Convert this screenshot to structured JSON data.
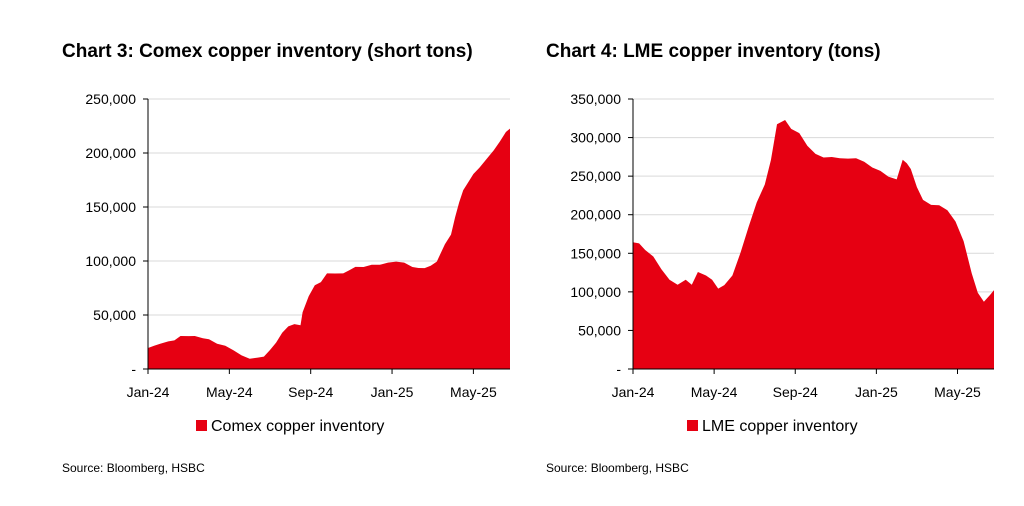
{
  "colors": {
    "series": "#e60012",
    "grid": "#d9d9d9",
    "axis": "#000000"
  },
  "chart_data": [
    {
      "type": "area",
      "title": "Chart 3: Comex copper inventory (short tons)",
      "source": "Source: Bloomberg, HSBC",
      "xlabel": "",
      "ylabel": "",
      "ylim": [
        0,
        250000
      ],
      "ytick_values": [
        0,
        50000,
        100000,
        150000,
        200000,
        250000
      ],
      "ytick_labels": [
        "-",
        "50,000",
        "100,000",
        "150,000",
        "200,000",
        "250,000"
      ],
      "xlim": [
        0,
        17.8
      ],
      "xtick_positions": [
        0,
        4,
        8,
        12,
        16
      ],
      "xtick_labels": [
        "Jan-24",
        "May-24",
        "Sep-24",
        "Jan-25",
        "May-25"
      ],
      "legend": [
        "Comex copper inventory"
      ],
      "legend_position": "bottom",
      "grid": true,
      "series": [
        {
          "name": "Comex copper inventory",
          "x": [
            0,
            0.3,
            0.6,
            1.0,
            1.3,
            1.6,
            2.0,
            2.3,
            2.7,
            3.0,
            3.4,
            3.8,
            4.2,
            4.6,
            5.0,
            5.4,
            5.7,
            6.0,
            6.3,
            6.6,
            6.9,
            7.2,
            7.5,
            7.6,
            7.9,
            8.2,
            8.5,
            8.8,
            9.2,
            9.6,
            9.9,
            10.2,
            10.6,
            11.0,
            11.4,
            11.8,
            12.2,
            12.6,
            13.0,
            13.3,
            13.6,
            13.9,
            14.2,
            14.6,
            14.9,
            15.1,
            15.3,
            15.5,
            15.7,
            16.0,
            16.3,
            16.7,
            17.0,
            17.3,
            17.6,
            17.8
          ],
          "values": [
            20000,
            21000,
            24000,
            25000,
            27000,
            30000,
            31000,
            30000,
            29000,
            27000,
            24000,
            21000,
            18000,
            12000,
            10000,
            10000,
            12000,
            17000,
            25000,
            33000,
            40000,
            41000,
            41000,
            52000,
            68000,
            77000,
            81000,
            88000,
            89000,
            88000,
            92000,
            94000,
            95000,
            96000,
            97000,
            98000,
            100000,
            98000,
            95000,
            93000,
            94000,
            95000,
            100000,
            115000,
            125000,
            140000,
            155000,
            165000,
            172000,
            180000,
            187000,
            195000,
            203000,
            210000,
            220000,
            222000
          ]
        }
      ]
    },
    {
      "type": "area",
      "title": "Chart 4: LME copper inventory (tons)",
      "source": "Source: Bloomberg, HSBC",
      "xlabel": "",
      "ylabel": "",
      "ylim": [
        0,
        350000
      ],
      "ytick_values": [
        0,
        50000,
        100000,
        150000,
        200000,
        250000,
        300000,
        350000
      ],
      "ytick_labels": [
        "-",
        "50,000",
        "100,000",
        "150,000",
        "200,000",
        "250,000",
        "300,000",
        "350,000"
      ],
      "xlim": [
        0,
        17.8
      ],
      "xtick_positions": [
        0,
        4,
        8,
        12,
        16
      ],
      "xtick_labels": [
        "Jan-24",
        "May-24",
        "Sep-24",
        "Jan-25",
        "May-25"
      ],
      "legend": [
        "LME copper inventory"
      ],
      "legend_position": "bottom",
      "grid": true,
      "series": [
        {
          "name": "LME copper inventory",
          "x": [
            0,
            0.3,
            0.6,
            1.0,
            1.4,
            1.8,
            2.2,
            2.6,
            2.9,
            3.2,
            3.6,
            3.9,
            4.2,
            4.5,
            4.9,
            5.3,
            5.7,
            6.1,
            6.5,
            6.8,
            7.1,
            7.5,
            7.8,
            8.2,
            8.6,
            9.0,
            9.4,
            9.8,
            10.2,
            10.6,
            11.0,
            11.4,
            11.8,
            12.2,
            12.6,
            13.0,
            13.3,
            13.5,
            13.7,
            14.0,
            14.3,
            14.7,
            15.1,
            15.5,
            15.9,
            16.3,
            16.7,
            17.0,
            17.3,
            17.6,
            17.8
          ],
          "values": [
            165000,
            162000,
            155000,
            145000,
            130000,
            115000,
            110000,
            115000,
            110000,
            125000,
            122000,
            115000,
            105000,
            108000,
            122000,
            150000,
            185000,
            215000,
            240000,
            270000,
            318000,
            322000,
            312000,
            305000,
            290000,
            278000,
            275000,
            274000,
            274000,
            272000,
            274000,
            268000,
            262000,
            256000,
            250000,
            245000,
            272000,
            266000,
            260000,
            235000,
            220000,
            212000,
            213000,
            205000,
            192000,
            165000,
            125000,
            98000,
            88000,
            95000,
            103000
          ]
        }
      ]
    }
  ]
}
